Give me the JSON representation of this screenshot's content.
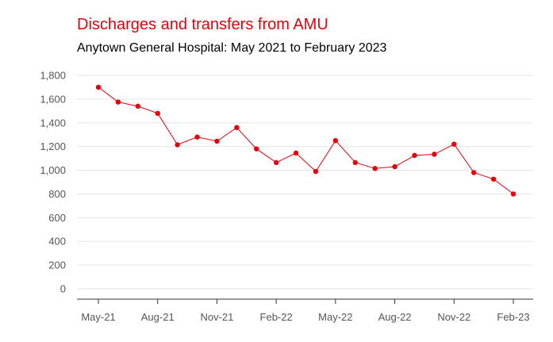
{
  "chart_data": {
    "type": "line",
    "title": "Discharges and transfers from AMU",
    "subtitle": "Anytown General Hospital: May 2021 to February 2023",
    "xlabel": "",
    "ylabel": "",
    "ylim": [
      0,
      1800
    ],
    "yticks": [
      0,
      200,
      400,
      600,
      800,
      1000,
      1200,
      1400,
      1600,
      1800
    ],
    "ytick_labels": [
      "0",
      "200",
      "400",
      "600",
      "800",
      "1,000",
      "1,200",
      "1,400",
      "1,600",
      "1,800"
    ],
    "x": [
      "May-21",
      "Jun-21",
      "Jul-21",
      "Aug-21",
      "Sep-21",
      "Oct-21",
      "Nov-21",
      "Dec-21",
      "Jan-22",
      "Feb-22",
      "Mar-22",
      "Apr-22",
      "May-22",
      "Jun-22",
      "Jul-22",
      "Aug-22",
      "Sep-22",
      "Oct-22",
      "Nov-22",
      "Dec-22",
      "Jan-23",
      "Feb-23"
    ],
    "xtick_labels": [
      "May-21",
      "Aug-21",
      "Nov-21",
      "Feb-22",
      "May-22",
      "Aug-22",
      "Nov-22",
      "Feb-23"
    ],
    "series": [
      {
        "values": [
          1700,
          1575,
          1540,
          1480,
          1215,
          1280,
          1245,
          1360,
          1180,
          1065,
          1145,
          990,
          1250,
          1065,
          1015,
          1030,
          1125,
          1135,
          1220,
          980,
          925,
          800
        ]
      }
    ],
    "grid": true,
    "legend": "none",
    "colors": {
      "line": "#e8000b",
      "marker": "#e8000b",
      "grid": "#e6e6e6",
      "axis": "#333333",
      "title": "#e8000b"
    }
  }
}
